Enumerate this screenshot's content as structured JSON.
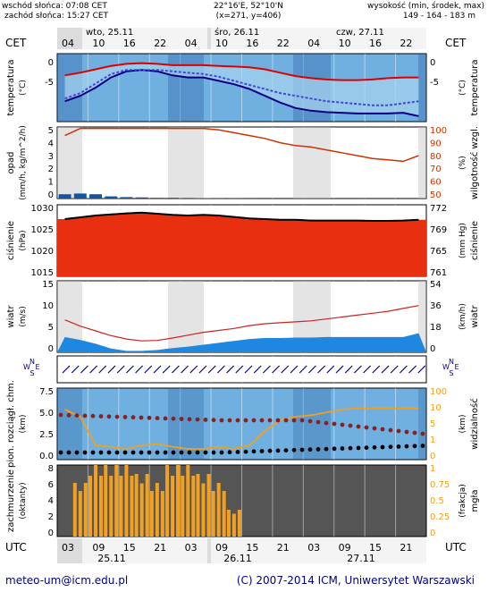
{
  "header": {
    "sunrise": "wschód słońca: 07:08 CET",
    "sunset": "zachód słońca: 15:27 CET",
    "coords": "22°16'E, 52°10'N",
    "grid": "(x=271, y=406)",
    "height_title": "wysokość (min, środek, max)",
    "height_values": "149 - 164 - 183 m"
  },
  "top_axis": {
    "left_label": "CET",
    "right_label": "CET",
    "hours": [
      "04",
      "10",
      "16",
      "22",
      "04",
      "10",
      "16",
      "22",
      "04",
      "10",
      "16",
      "22"
    ],
    "days": [
      "wto, 25.11",
      "śro, 26.11",
      "czw, 27.11"
    ]
  },
  "bottom_axis": {
    "left_label": "UTC",
    "right_label": "UTC",
    "hours": [
      "03",
      "09",
      "15",
      "21",
      "03",
      "09",
      "15",
      "21",
      "03",
      "09",
      "15",
      "21"
    ],
    "days": [
      "25.11",
      "26.11",
      "27.11"
    ]
  },
  "panels": {
    "temp": {
      "left_label": "temperatura",
      "left_unit": "(°C)",
      "right_label": "temperatura",
      "right_unit": "(°C)",
      "left_ticks": [
        "0",
        "-5"
      ],
      "right_ticks": [
        "0",
        "-5"
      ]
    },
    "precip": {
      "left_label": "opad",
      "left_unit": "(mm/h, kg/m^2/h)",
      "right_label": "wilgotność wzgl.",
      "right_unit": "(%)",
      "left_ticks": [
        "5",
        "4",
        "3",
        "2",
        "1",
        "0"
      ],
      "right_ticks": [
        "100",
        "90",
        "80",
        "70",
        "60",
        "50"
      ]
    },
    "pressure": {
      "left_label": "ciśnienie",
      "left_unit": "(hPa)",
      "right_label": "ciśnienie",
      "right_unit": "(mm Hg)",
      "left_ticks": [
        "1030",
        "1025",
        "1020",
        "1015"
      ],
      "right_ticks": [
        "772",
        "769",
        "765",
        "761"
      ]
    },
    "wind": {
      "left_label": "wiatr",
      "left_unit": "(m/s)",
      "right_label": "wiatr",
      "right_unit": "(km/h)",
      "left_ticks": [
        "15",
        "10",
        "5",
        "0"
      ],
      "right_ticks": [
        "54",
        "36",
        "18",
        "0"
      ]
    },
    "winddir": {
      "compass_n": "N",
      "compass_s": "S",
      "compass_w": "W",
      "compass_e": "E"
    },
    "cloudbase": {
      "left_label": "pion. rozciągł. chm.",
      "left_unit": "(km)",
      "right_label": "widzialność",
      "right_unit": "(km)",
      "left_ticks": [
        "7.5",
        "5.0",
        "2.5",
        "0.0"
      ],
      "right_ticks": [
        "100",
        "10",
        "5",
        "1",
        "0"
      ]
    },
    "cloud": {
      "left_label": "zachmurzenie",
      "left_unit": "(oktanty)",
      "right_label": "mgła",
      "right_unit": "(frakcja)",
      "left_ticks": [
        "8",
        "6",
        "4",
        "2",
        "0"
      ],
      "right_ticks": [
        "1",
        "0.75",
        "0.5",
        "0.25",
        "0"
      ]
    }
  },
  "footer": {
    "email": "meteo-um@icm.edu.pl",
    "copyright": "(C) 2007-2014 ICM, Uniwersytet Warszawski"
  },
  "colors": {
    "temp_max": "#dd0000",
    "temp_min": "#000080",
    "temp_dew": "#4444dd",
    "humidity": "#cc3300",
    "precip": "#1155aa",
    "pressure_fill": "#e83010",
    "wind_gust": "#cc2222",
    "cloud_bar": "#f2a020",
    "visibility": "#f0a020",
    "cloud_base": "#882222",
    "night_bg": "#555555",
    "panel_bg": "#6fb0e0"
  },
  "chart_data": [
    {
      "type": "line",
      "panel": "temperatura",
      "series": [
        {
          "name": "max",
          "values": [
            -1.2,
            -0.8,
            -0.3,
            0.2,
            0.5,
            0.6,
            0.5,
            0.3,
            0.3,
            0.3,
            0.2,
            0.1,
            0.0,
            -0.3,
            -0.8,
            -1.3,
            -1.6,
            -1.8,
            -1.9,
            -1.9,
            -1.8,
            -1.6,
            -1.5,
            -1.5
          ]
        },
        {
          "name": "min",
          "values": [
            -5.0,
            -4.2,
            -3.0,
            -1.5,
            -0.6,
            -0.4,
            -0.6,
            -1.2,
            -1.5,
            -1.5,
            -2.0,
            -2.5,
            -3.2,
            -4.2,
            -5.2,
            -6.0,
            -6.4,
            -6.6,
            -6.7,
            -6.8,
            -6.8,
            -6.8,
            -6.7,
            -7.2
          ]
        },
        {
          "name": "dew",
          "values": [
            -4.6,
            -3.8,
            -2.4,
            -1.0,
            -0.4,
            -0.4,
            -0.4,
            -0.6,
            -0.8,
            -1.0,
            -1.4,
            -2.0,
            -2.6,
            -3.2,
            -3.8,
            -4.2,
            -4.6,
            -5.0,
            -5.2,
            -5.4,
            -5.6,
            -5.6,
            -5.3,
            -5.0
          ]
        }
      ],
      "ylim": [
        -8,
        2
      ]
    },
    {
      "type": "line",
      "panel": "wilgotność",
      "series": [
        {
          "name": "humidity",
          "values": [
            94,
            99,
            99,
            99,
            99,
            99,
            99,
            99,
            99,
            99,
            98,
            96,
            94,
            92,
            89,
            87,
            86,
            84,
            82,
            80,
            78,
            77,
            76,
            80
          ]
        }
      ],
      "ylim": [
        50,
        100
      ]
    },
    {
      "type": "bar",
      "panel": "opad",
      "series": [
        {
          "name": "precip",
          "values": [
            0.3,
            0.35,
            0.3,
            0.15,
            0.1,
            0.08,
            0.05,
            0.05,
            0.04,
            0.03,
            0.02,
            0.02,
            0.01,
            0.0,
            0.0,
            0.0,
            0.0,
            0.0,
            0.0,
            0.0,
            0.0,
            0.0,
            0.0,
            0.0
          ]
        }
      ],
      "ylim": [
        0,
        5
      ]
    },
    {
      "type": "area",
      "panel": "ciśnienie",
      "series": [
        {
          "name": "pressure",
          "values": [
            1027,
            1027.5,
            1028,
            1028.3,
            1028.6,
            1028.8,
            1028.5,
            1028.2,
            1028,
            1028.2,
            1028,
            1027.6,
            1027.2,
            1027,
            1026.8,
            1026.8,
            1026.6,
            1026.6,
            1026.6,
            1026.6,
            1026.5,
            1026.5,
            1026.6,
            1026.8
          ]
        }
      ],
      "ylim": [
        1011,
        1031
      ]
    },
    {
      "type": "line",
      "panel": "wiatr",
      "series": [
        {
          "name": "gust",
          "values": [
            6.8,
            5.5,
            4.5,
            3.5,
            2.8,
            2.4,
            2.5,
            3.0,
            3.6,
            4.2,
            4.6,
            5.0,
            5.6,
            6.0,
            6.2,
            6.4,
            6.6,
            7.0,
            7.4,
            7.8,
            8.2,
            8.6,
            9.2,
            9.8
          ]
        },
        {
          "name": "wind",
          "values": [
            3.2,
            2.6,
            1.8,
            0.8,
            0.3,
            0.3,
            0.5,
            0.9,
            1.2,
            1.6,
            2.0,
            2.4,
            2.8,
            3.0,
            3.0,
            3.1,
            3.1,
            3.2,
            3.2,
            3.2,
            3.2,
            3.2,
            3.2,
            4.0
          ]
        }
      ],
      "ylim": [
        0,
        15
      ]
    },
    {
      "type": "bar",
      "panel": "zachmurzenie",
      "series": [
        {
          "name": "cloud",
          "values": [
            0,
            6,
            8,
            8,
            8,
            7,
            6,
            8,
            8,
            7,
            6,
            3,
            0,
            0,
            0,
            0,
            0,
            0,
            0,
            0,
            0,
            0,
            0,
            0
          ]
        }
      ],
      "ylim": [
        0,
        8
      ]
    }
  ]
}
